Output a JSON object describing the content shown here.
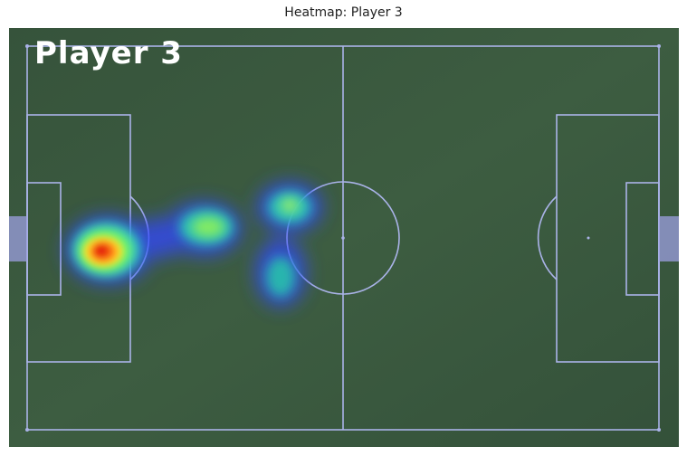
{
  "figure": {
    "title": "Heatmap: Player 3",
    "overlay_label": "Player 3"
  },
  "pitch": {
    "grass_color": "#3b5a3f",
    "line_color": "#aab3e8"
  },
  "heatmap": {
    "colormap": "jet",
    "hotspot_level": "high near left penalty area, fading toward center circle"
  }
}
